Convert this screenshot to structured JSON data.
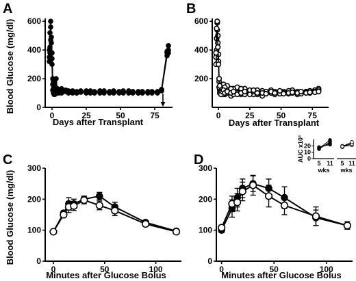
{
  "chart_data": [
    {
      "id": "A",
      "type": "line",
      "panel_label": "A",
      "xlabel": "Days after Transplant",
      "ylabel": "Blood Glucose (mg/dl)",
      "xlim": [
        -5,
        88
      ],
      "ylim": [
        0,
        620
      ],
      "xticks": [
        0,
        25,
        50,
        75
      ],
      "yticks": [
        0,
        200,
        400,
        600
      ],
      "marker": "filled",
      "arrow_at_x": 81,
      "series": [
        {
          "x": [
            -2,
            -1.5,
            -1,
            -0.5,
            0,
            0.5,
            1,
            1.5,
            2,
            3,
            4,
            5,
            7,
            10,
            12,
            15,
            18,
            21,
            25,
            28,
            31,
            35,
            38,
            42,
            45,
            49,
            52,
            56,
            59,
            63,
            66,
            70,
            73,
            77,
            80,
            84,
            85
          ],
          "y": [
            350,
            420,
            560,
            490,
            380,
            160,
            130,
            95,
            110,
            200,
            110,
            120,
            130,
            115,
            105,
            100,
            110,
            115,
            100,
            110,
            105,
            100,
            115,
            105,
            100,
            110,
            100,
            115,
            105,
            100,
            110,
            105,
            100,
            105,
            120,
            380,
            430
          ]
        },
        {
          "x": [
            -2,
            -1.5,
            -1,
            -0.5,
            0,
            0.5,
            1,
            1.5,
            2,
            3,
            4,
            5,
            7,
            10,
            12,
            15,
            18,
            21,
            25,
            28,
            31,
            35,
            38,
            42,
            45,
            49,
            52,
            56,
            59,
            63,
            66,
            70,
            73,
            77,
            80,
            84,
            85
          ],
          "y": [
            400,
            520,
            470,
            380,
            300,
            120,
            180,
            90,
            140,
            100,
            130,
            100,
            110,
            120,
            100,
            115,
            100,
            105,
            115,
            100,
            110,
            115,
            100,
            110,
            105,
            100,
            115,
            105,
            110,
            100,
            105,
            110,
            105,
            100,
            115,
            360,
            400
          ]
        },
        {
          "x": [
            -2,
            -1.5,
            -1,
            -0.5,
            0,
            0.5,
            1,
            1.5,
            2,
            3,
            4,
            5,
            7,
            10,
            12,
            15,
            18,
            21,
            25,
            28,
            31,
            35,
            38,
            42,
            45,
            49,
            52,
            56,
            59,
            63,
            66,
            70,
            73,
            77,
            80,
            84,
            85
          ],
          "y": [
            320,
            380,
            600,
            450,
            340,
            200,
            100,
            150,
            90,
            120,
            100,
            105,
            100,
            110,
            115,
            105,
            100,
            110,
            105,
            115,
            100,
            105,
            110,
            100,
            115,
            105,
            110,
            100,
            100,
            110,
            100,
            100,
            110,
            110,
            125,
            390,
            380
          ]
        }
      ]
    },
    {
      "id": "B",
      "type": "line",
      "panel_label": "B",
      "xlabel": "Days after Transplant",
      "ylabel": "",
      "xlim": [
        -5,
        88
      ],
      "ylim": [
        0,
        620
      ],
      "xticks": [
        0,
        25,
        50,
        75
      ],
      "yticks": [
        200,
        400,
        600
      ],
      "marker": "open",
      "series": [
        {
          "x": [
            -2,
            -1.5,
            -1,
            -0.5,
            0,
            0.5,
            1,
            2,
            3,
            4,
            5,
            7,
            10,
            12,
            15,
            18,
            21,
            25,
            28,
            31,
            35,
            38,
            42,
            45,
            49,
            52,
            56,
            59,
            63,
            66,
            70,
            73,
            77,
            80
          ],
          "y": [
            350,
            480,
            590,
            500,
            370,
            180,
            120,
            140,
            100,
            160,
            90,
            150,
            80,
            130,
            140,
            90,
            130,
            100,
            90,
            120,
            80,
            110,
            120,
            90,
            105,
            110,
            95,
            120,
            90,
            100,
            110,
            115,
            120,
            130
          ]
        },
        {
          "x": [
            -2,
            -1.5,
            -1,
            -0.5,
            0,
            0.5,
            1,
            2,
            3,
            4,
            5,
            7,
            10,
            12,
            15,
            18,
            21,
            25,
            28,
            31,
            35,
            38,
            42,
            45,
            49,
            52,
            56,
            59,
            63,
            66,
            70,
            73,
            77,
            80
          ],
          "y": [
            300,
            400,
            540,
            450,
            320,
            140,
            100,
            110,
            130,
            90,
            140,
            100,
            130,
            90,
            100,
            130,
            90,
            120,
            110,
            90,
            115,
            95,
            100,
            110,
            95,
            100,
            115,
            100,
            110,
            95,
            105,
            100,
            110,
            120
          ]
        },
        {
          "x": [
            -2,
            -1.5,
            -1,
            -0.5,
            0,
            0.5,
            1,
            2,
            3,
            4,
            5,
            7,
            10,
            12,
            15,
            18,
            21,
            25,
            28,
            31,
            35,
            38,
            42,
            45,
            49,
            52,
            56,
            59,
            63,
            66,
            70,
            73,
            77,
            80
          ],
          "y": [
            380,
            550,
            600,
            420,
            300,
            200,
            150,
            90,
            110,
            120,
            100,
            110,
            100,
            110,
            90,
            100,
            110,
            90,
            120,
            100,
            100,
            95,
            110,
            100,
            115,
            95,
            100,
            105,
            100,
            110,
            100,
            105,
            105,
            110
          ]
        }
      ]
    },
    {
      "id": "C",
      "type": "line",
      "panel_label": "C",
      "xlabel": "Minutes after Glucose Bolus",
      "ylabel": "Blood Glucose (mg/dl)",
      "xlim": [
        -8,
        125
      ],
      "ylim": [
        0,
        300
      ],
      "xticks": [
        0,
        50,
        100
      ],
      "yticks": [
        0,
        100,
        200,
        300
      ],
      "series": [
        {
          "name": "",
          "marker": "filled",
          "x": [
            0,
            10,
            15,
            20,
            30,
            45,
            60,
            90,
            120
          ],
          "y": [
            95,
            155,
            185,
            185,
            200,
            210,
            175,
            125,
            97
          ],
          "err": [
            3,
            8,
            20,
            15,
            10,
            12,
            15,
            6,
            4
          ]
        },
        {
          "name": "",
          "marker": "open",
          "x": [
            0,
            10,
            15,
            20,
            30,
            45,
            60,
            90,
            120
          ],
          "y": [
            95,
            150,
            175,
            178,
            197,
            180,
            163,
            120,
            95
          ],
          "err": [
            3,
            8,
            18,
            15,
            12,
            14,
            16,
            6,
            4
          ]
        }
      ]
    },
    {
      "id": "D",
      "type": "line",
      "panel_label": "D",
      "xlabel": "Minutes after Glucose Bolus",
      "ylabel": "",
      "xlim": [
        -5,
        125
      ],
      "ylim": [
        0,
        300
      ],
      "xticks": [
        0,
        50,
        100
      ],
      "yticks": [
        0,
        100,
        200,
        300
      ],
      "series": [
        {
          "name": "",
          "marker": "filled",
          "x": [
            0,
            10,
            15,
            20,
            30,
            45,
            60,
            90,
            120
          ],
          "y": [
            100,
            170,
            205,
            235,
            250,
            235,
            205,
            140,
            115
          ],
          "err": [
            8,
            28,
            30,
            30,
            25,
            30,
            35,
            25,
            12
          ]
        },
        {
          "name": "",
          "marker": "open",
          "x": [
            0,
            10,
            15,
            20,
            30,
            45,
            60,
            90,
            120
          ],
          "y": [
            108,
            185,
            190,
            225,
            245,
            210,
            180,
            145,
            115
          ],
          "err": [
            8,
            25,
            28,
            30,
            32,
            35,
            30,
            30,
            12
          ]
        }
      ],
      "inset": [
        {
          "type": "line",
          "marker": "filled",
          "ylabel": "AUC x10³",
          "yticks": [
            0,
            10,
            20
          ],
          "ylim": [
            0,
            30
          ],
          "categories": [
            "5",
            "11"
          ],
          "xlabel": "wks",
          "pairs": [
            [
              17,
              24
            ],
            [
              16,
              29
            ],
            [
              18,
              22
            ],
            [
              15,
              26
            ]
          ]
        },
        {
          "type": "line",
          "marker": "open",
          "ylabel": "",
          "yticks": [],
          "ylim": [
            0,
            30
          ],
          "categories": [
            "5",
            "11"
          ],
          "xlabel": "wks",
          "pairs": [
            [
              19,
              21
            ],
            [
              18,
              24
            ],
            [
              20,
              23
            ],
            [
              19,
              26
            ]
          ]
        }
      ]
    }
  ]
}
